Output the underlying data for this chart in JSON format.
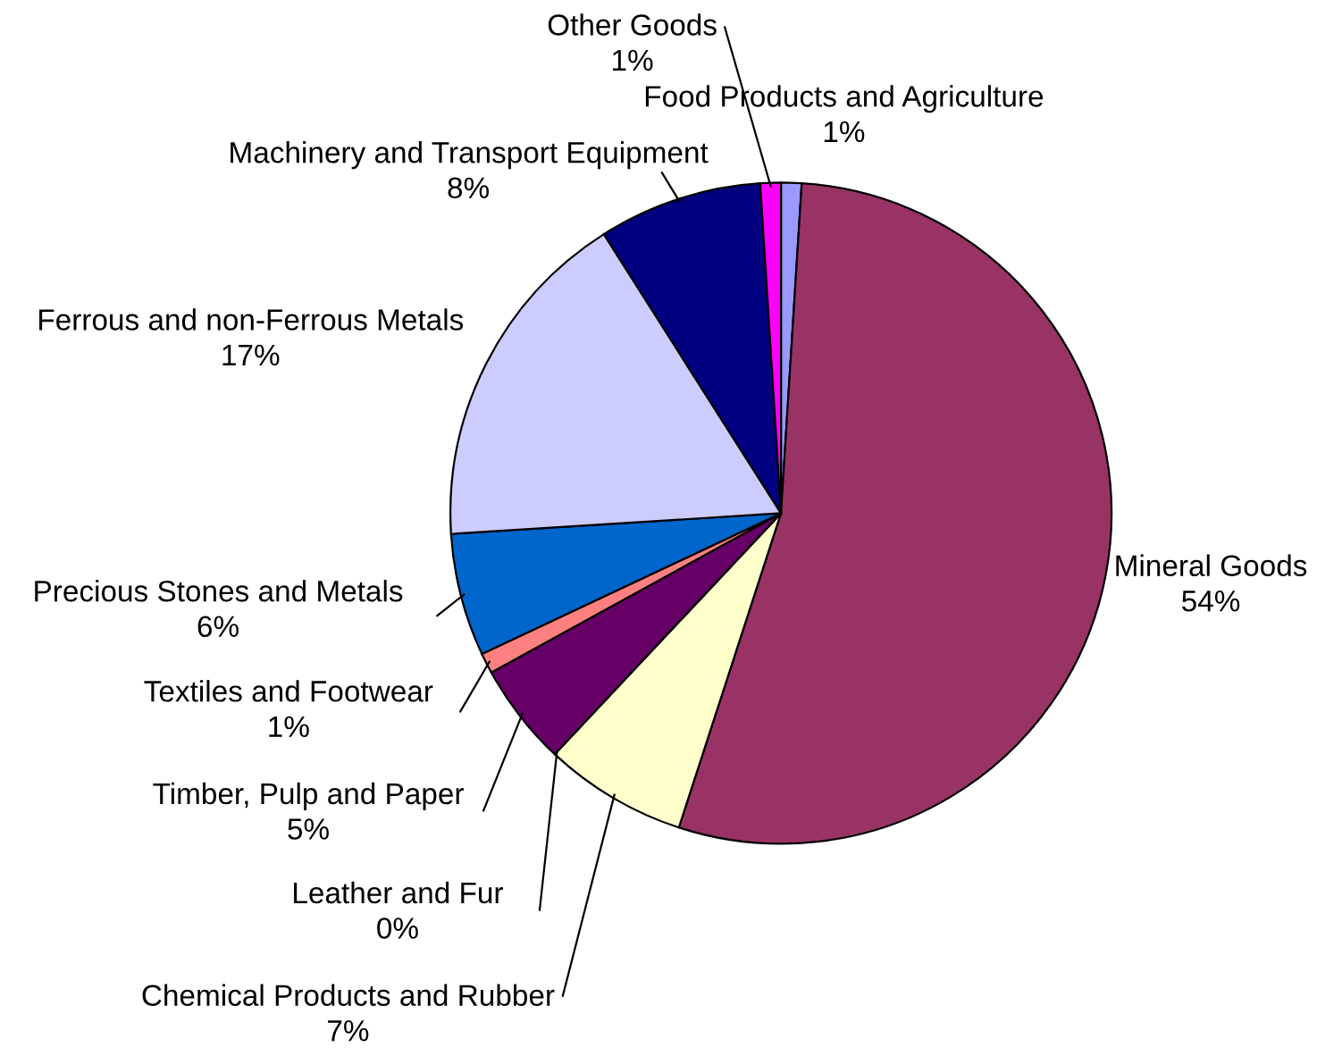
{
  "chart_data": {
    "type": "pie",
    "categories": [
      "Food Products and Agriculture",
      "Mineral Goods",
      "Chemical Products and Rubber",
      "Leather and Fur",
      "Timber, Pulp and Paper",
      "Textiles and Footwear",
      "Precious Stones and Metals",
      "Ferrous and non-Ferrous Metals",
      "Machinery and Transport Equipment",
      "Other Goods"
    ],
    "values": [
      1,
      54,
      7,
      0,
      5,
      1,
      6,
      17,
      8,
      1
    ],
    "colors": [
      "#9999ff",
      "#993366",
      "#ffffcc",
      "#339999",
      "#660066",
      "#ff8080",
      "#0066cc",
      "#ccccff",
      "#000080",
      "#ff00ff"
    ],
    "value_labels": [
      "1%",
      "54%",
      "7%",
      "0%",
      "5%",
      "1%",
      "6%",
      "17%",
      "8%",
      "1%"
    ]
  }
}
